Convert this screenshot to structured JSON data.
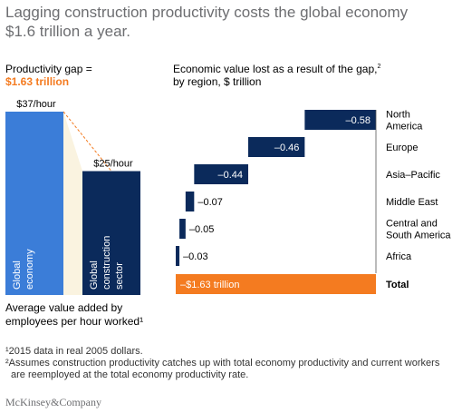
{
  "title_line1": "Lagging construction productivity costs the global economy",
  "title_line2": "$1.6 trillion a year.",
  "left_panel": {
    "heading": "Productivity gap =",
    "gap_value": "$1.63 trillion",
    "caption_line1": "Average value added by",
    "caption_line2": "employees per hour worked¹"
  },
  "right_panel": {
    "heading": "Economic value lost as a result of the gap,",
    "heading_sup": "2",
    "subheading": "by region, $ trillion"
  },
  "footnotes": {
    "fn1": "¹2015 data in real 2005 dollars.",
    "fn2_line1": "²Assumes construction productivity catches up with total economy productivity and current workers",
    "fn2_line2": "are reemployed at the total economy productivity rate."
  },
  "brand": "McKinsey&Company",
  "colors": {
    "global_bar": "#3b7dd8",
    "construction_bar": "#0b2a5b",
    "gap_fill": "#faf3e0",
    "gap_line": "#f47b20",
    "region_bar": "#0b2a5b",
    "total_bar": "#f47b20",
    "title": "#6d6e71"
  },
  "chart_data": [
    {
      "type": "bar",
      "categories": [
        "Global economy",
        "Global construction sector"
      ],
      "values": [
        37,
        25
      ],
      "value_labels": [
        "$37/hour",
        "$25/hour"
      ],
      "bar_labels": [
        [
          "Global",
          "economy"
        ],
        [
          "Global",
          "construction",
          "sector"
        ]
      ],
      "ylim": [
        0,
        37
      ]
    },
    {
      "type": "bar",
      "orientation": "horizontal-waterfall",
      "categories": [
        [
          "North",
          "America"
        ],
        [
          "Europe"
        ],
        [
          "Asia–Pacific"
        ],
        [
          "Middle East"
        ],
        [
          "Central and",
          "South America"
        ],
        [
          "Africa"
        ]
      ],
      "values": [
        -0.58,
        -0.46,
        -0.44,
        -0.07,
        -0.05,
        -0.03
      ],
      "value_labels": [
        "–0.58",
        "–0.46",
        "–0.44",
        "–0.07",
        "–0.05",
        "–0.03"
      ],
      "total": {
        "label": "Total",
        "value": -1.63,
        "value_label": "–$1.63 trillion"
      }
    }
  ]
}
